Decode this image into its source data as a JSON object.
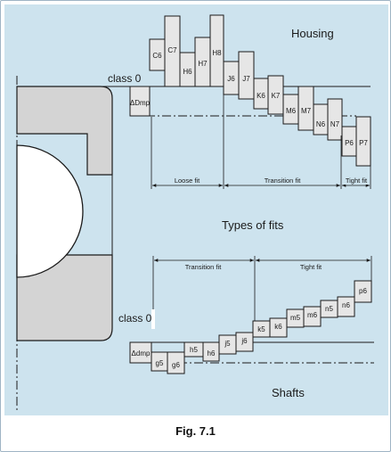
{
  "figure": {
    "caption": "Fig. 7.1",
    "center_title": "Types of fits",
    "housing_title": "Housing",
    "shafts_title": "Shafts"
  },
  "housing": {
    "reference_label": "class 0",
    "deviation_label": "ΔDmp",
    "zones": [
      "C6",
      "C7",
      "H6",
      "H7",
      "H8",
      "J6",
      "J7",
      "K6",
      "K7",
      "M6",
      "M7",
      "N6",
      "N7",
      "P6",
      "P7"
    ],
    "fit_ranges": [
      "Loose fit",
      "Transition fit",
      "Tight fit"
    ]
  },
  "shaft": {
    "reference_label": "class 0",
    "deviation_label": "Δdmp",
    "zones": [
      "g5",
      "g6",
      "h5",
      "h6",
      "j5",
      "j6",
      "k5",
      "k6",
      "m5",
      "m6",
      "n5",
      "n6",
      "p6"
    ],
    "fit_ranges": [
      "Transition fit",
      "Tight fit"
    ]
  },
  "colors": {
    "panel": "#cde3ee",
    "box_fill": "#e6e6e6",
    "bearing_fill": "#d4d4d4",
    "line": "#1a1a1a"
  }
}
